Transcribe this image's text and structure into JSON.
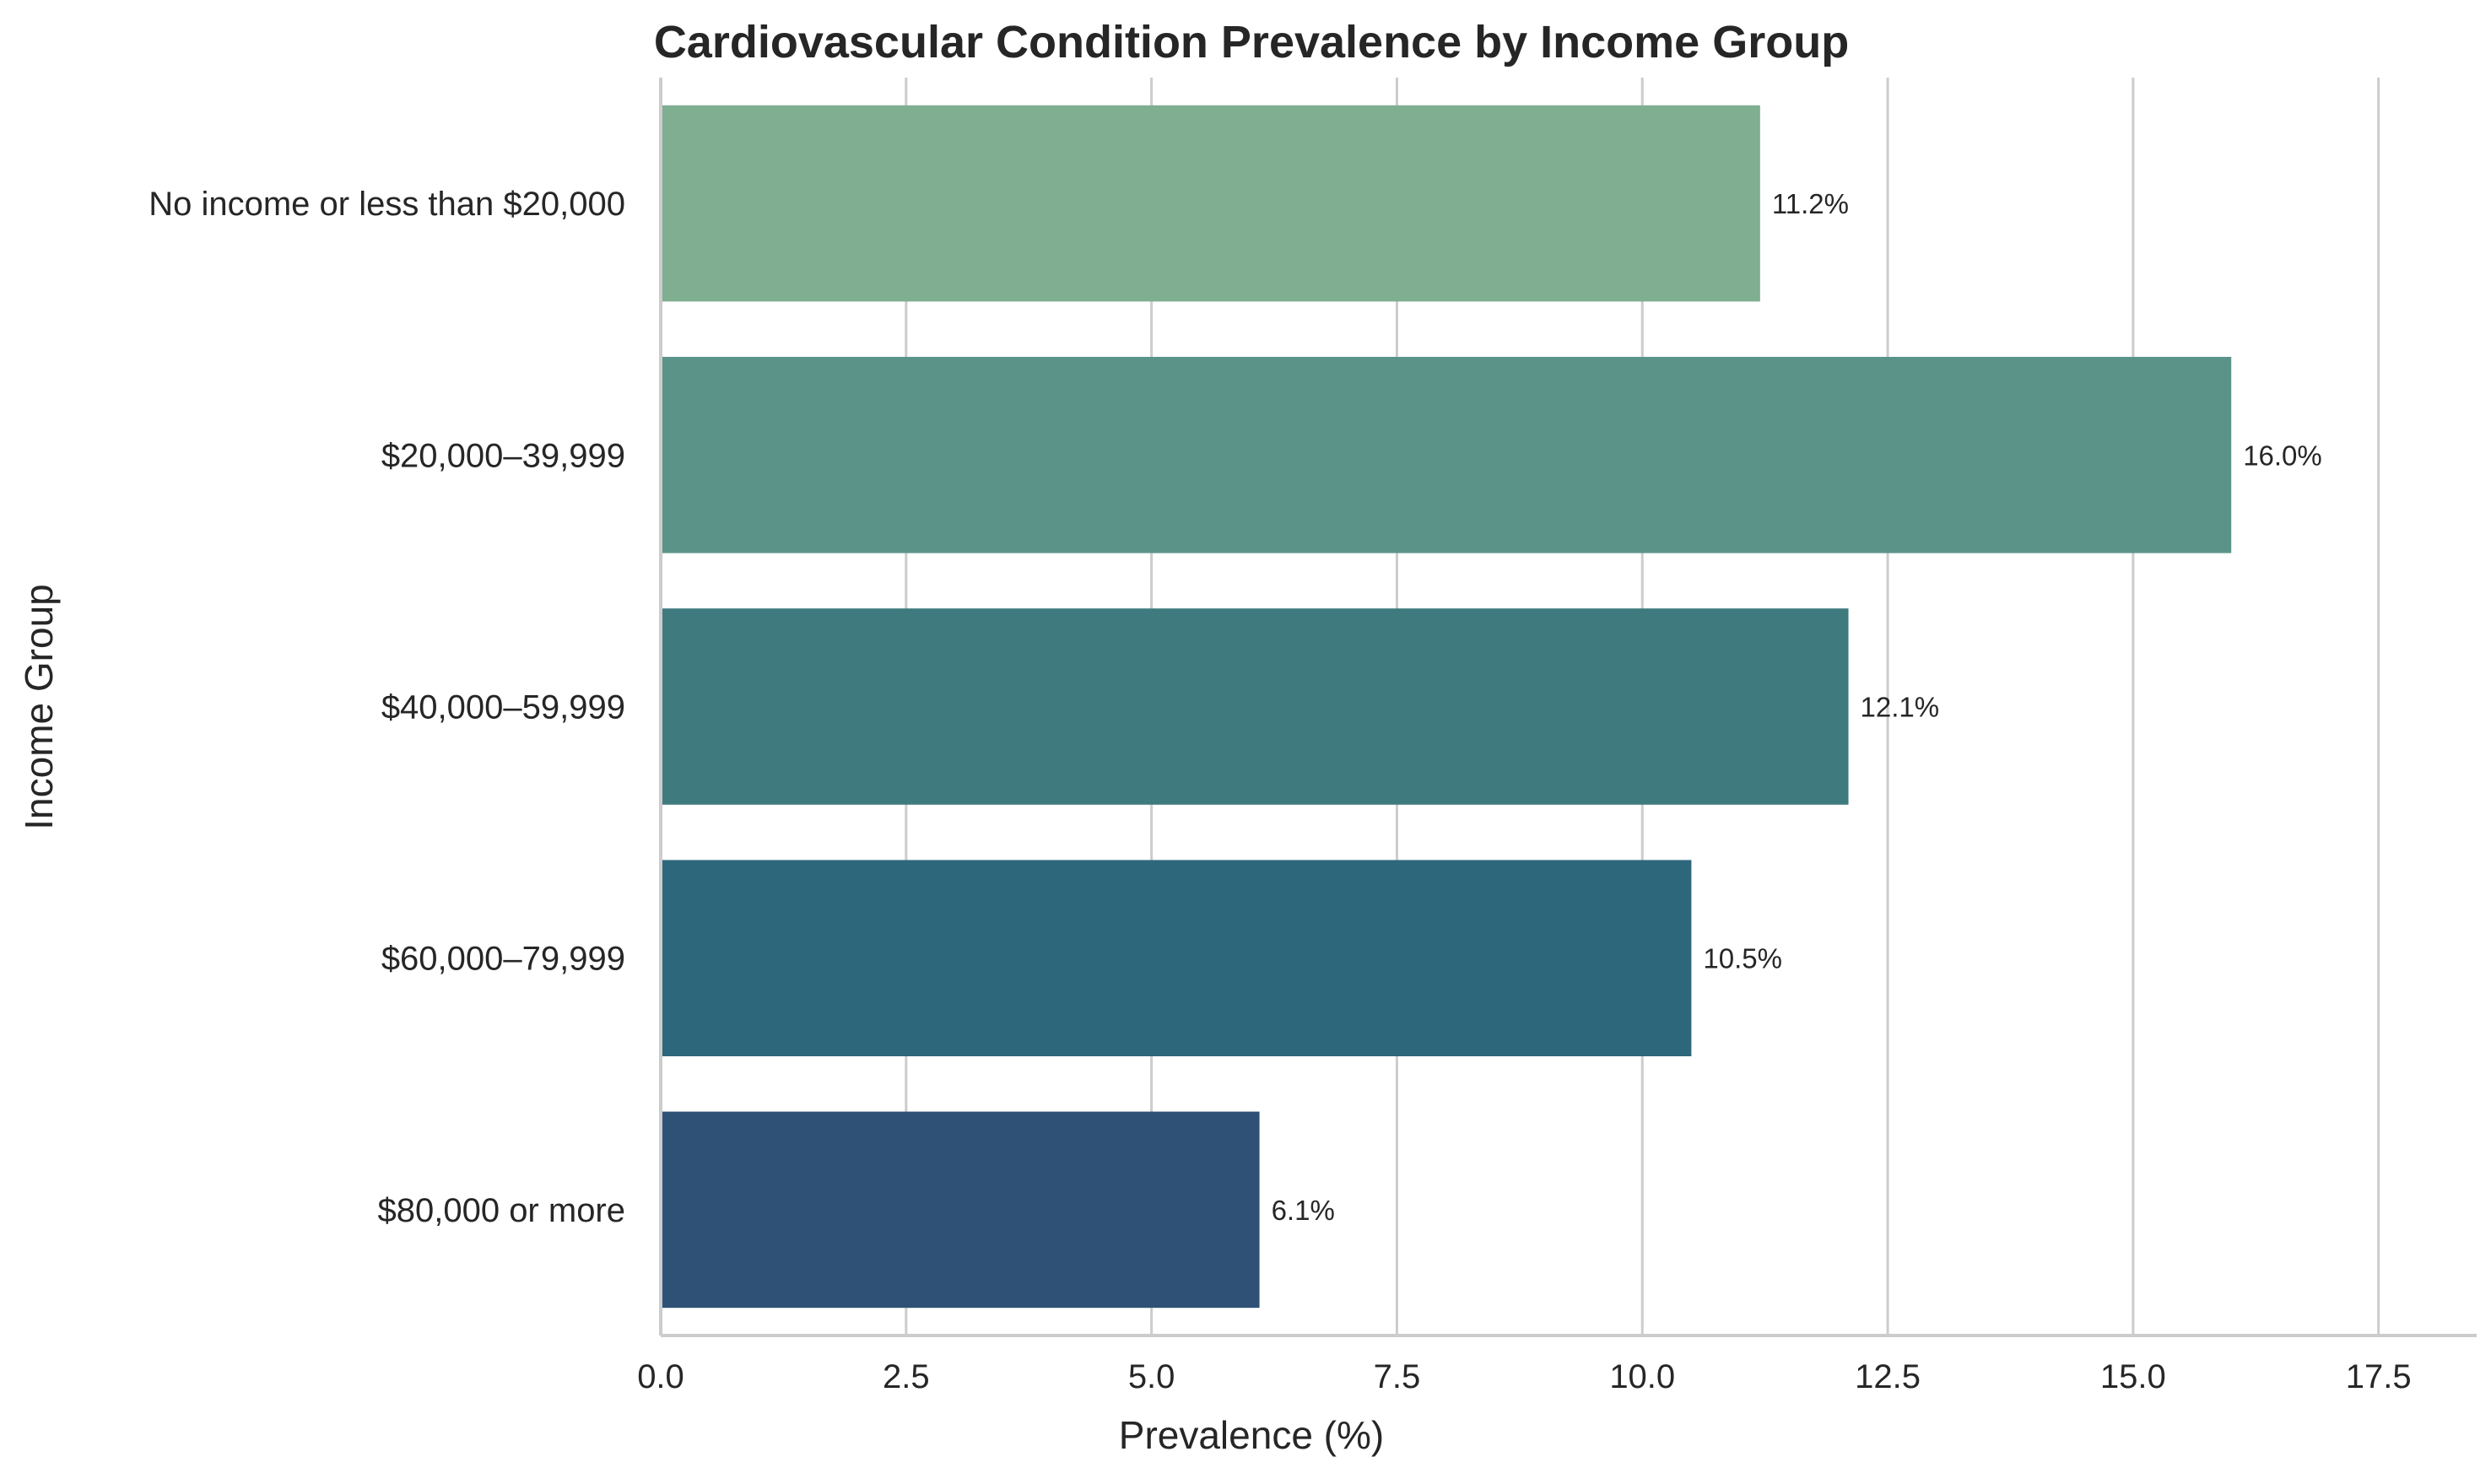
{
  "chart_data": {
    "type": "bar",
    "orientation": "horizontal",
    "title": "Cardiovascular Condition Prevalence by Income Group",
    "xlabel": "Prevalence (%)",
    "ylabel": "Income Group",
    "categories": [
      "No income or less than $20,000",
      "$20,000–39,999",
      "$40,000–59,999",
      "$60,000–79,999",
      "$80,000 or more"
    ],
    "values": [
      11.2,
      16.0,
      12.1,
      10.5,
      6.1
    ],
    "value_labels": [
      "11.2%",
      "16.0%",
      "12.1%",
      "10.5%",
      "6.1%"
    ],
    "colors": [
      "#7fae91",
      "#5b9389",
      "#3f7a7f",
      "#2d677c",
      "#2f5175"
    ],
    "xlim": [
      0,
      18.5
    ],
    "xticks": [
      0.0,
      2.5,
      5.0,
      7.5,
      10.0,
      12.5,
      15.0,
      17.5
    ],
    "xtick_labels": [
      "0.0",
      "2.5",
      "5.0",
      "7.5",
      "10.0",
      "12.5",
      "15.0",
      "17.5"
    ],
    "grid": "vertical",
    "gridline_color": "#cccccc",
    "axis_color": "#cccccc"
  }
}
